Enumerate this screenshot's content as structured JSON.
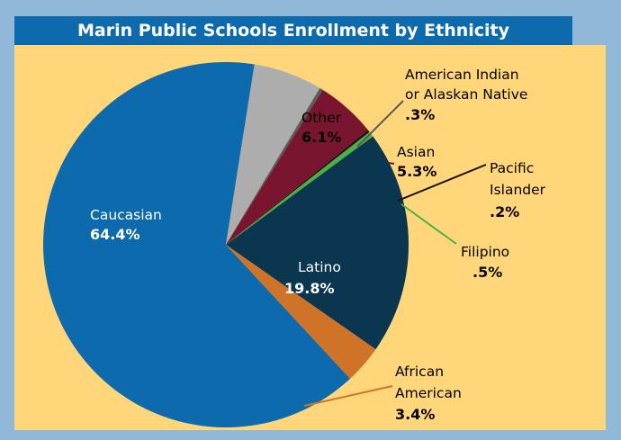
{
  "chart_data": {
    "type": "pie",
    "title": "Marin Public Schools Enrollment by Ethnicity",
    "slices": [
      {
        "label": "Caucasian",
        "value": 64.4,
        "display": "64.4%",
        "color": "#0d6aac"
      },
      {
        "label": "Other",
        "value": 6.1,
        "display": "6.1%",
        "color": "#adadad"
      },
      {
        "label": "American Indian or Alaskan Native",
        "value": 0.3,
        "display": ".3%",
        "color": "#5a5a5a"
      },
      {
        "label": "Asian",
        "value": 5.3,
        "display": "5.3%",
        "color": "#7a1530"
      },
      {
        "label": "Pacific Islander",
        "value": 0.2,
        "display": ".2%",
        "color": "#111111"
      },
      {
        "label": "Filipino",
        "value": 0.5,
        "display": ".5%",
        "color": "#4caf47"
      },
      {
        "label": "Latino",
        "value": 19.8,
        "display": "19.8%",
        "color": "#0a3650"
      },
      {
        "label": "African American",
        "value": 3.4,
        "display": "3.4%",
        "color": "#cf7329"
      }
    ],
    "labels": {
      "caucasian": [
        "Caucasian",
        "64.4%"
      ],
      "other": [
        "Other",
        "6.1%"
      ],
      "american_indian": [
        "American Indian",
        "or Alaskan Native",
        ".3%"
      ],
      "asian": [
        "Asian",
        "5.3%"
      ],
      "pacific": [
        "Pacific",
        "Islander",
        ".2%"
      ],
      "filipino": [
        "Filipino",
        ".5%"
      ],
      "latino": [
        "Latino",
        "19.8%"
      ],
      "african": [
        "African",
        "American",
        "3.4%"
      ]
    }
  }
}
